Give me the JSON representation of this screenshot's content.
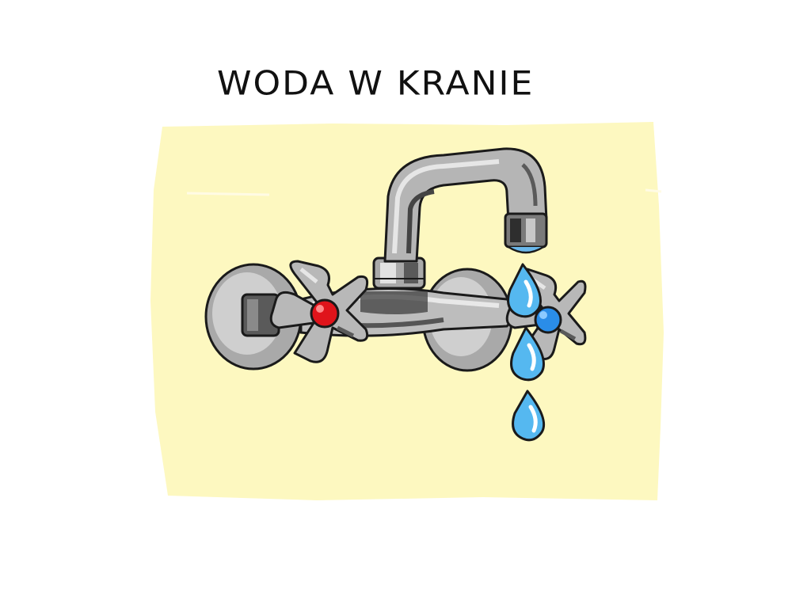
{
  "title": "WODA W KRANIE",
  "colors": {
    "background_panel": "#fdf8c0",
    "chrome_light": "#d6d6d6",
    "chrome_mid": "#a9a9a9",
    "chrome_dark": "#4a4a4a",
    "outline": "#1a1a1a",
    "hot_cap": "#e0141b",
    "cold_cap": "#2a8de8",
    "water": "#55b8f0"
  },
  "icons": [
    "faucet-icon",
    "hot-handle-icon",
    "cold-handle-icon",
    "water-drop-icon"
  ]
}
